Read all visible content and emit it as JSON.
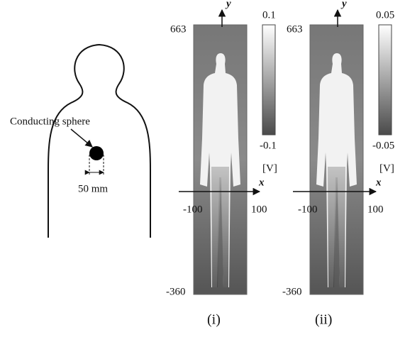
{
  "figure": {
    "sphere_label": "Conducting sphere",
    "diameter_label": "50 mm"
  },
  "panels": [
    {
      "caption": "(i)",
      "y_top": "663",
      "y_bottom": "-360",
      "x_left": "-100",
      "x_right": "100",
      "x_axis": "x",
      "y_axis": "y",
      "colorbar_max": "0.1",
      "colorbar_min": "-0.1",
      "unit": "[V]"
    },
    {
      "caption": "(ii)",
      "y_top": "663",
      "y_bottom": "-360",
      "x_left": "-100",
      "x_right": "100",
      "x_axis": "x",
      "y_axis": "y",
      "colorbar_max": "0.05",
      "colorbar_min": "-0.05",
      "unit": "[V]"
    }
  ]
}
